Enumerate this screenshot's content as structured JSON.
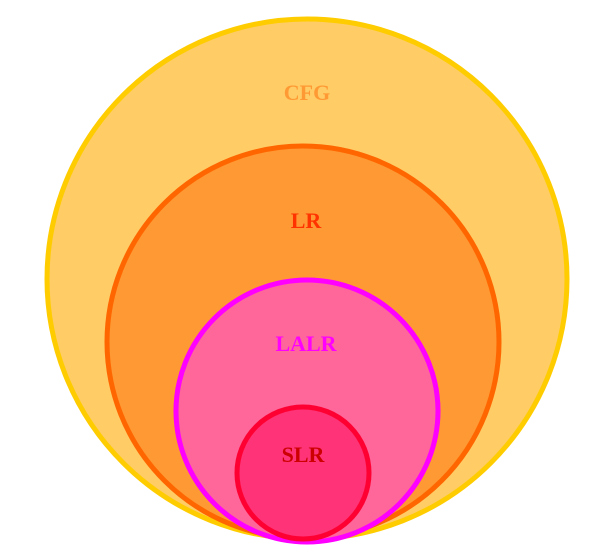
{
  "sets": [
    {
      "id": "cfg",
      "label": "CFG",
      "fill": "#FFCC66",
      "stroke": "#FFCC00",
      "label_color": "#FF9933"
    },
    {
      "id": "lr",
      "label": "LR",
      "fill": "#FF9933",
      "stroke": "#FF6600",
      "label_color": "#FF3300"
    },
    {
      "id": "lalr",
      "label": "LALR",
      "fill": "#FF6699",
      "stroke": "#FF00FF",
      "label_color": "#FF00FF"
    },
    {
      "id": "slr",
      "label": "SLR",
      "fill": "#FF3377",
      "stroke": "#FF0033",
      "label_color": "#CC0000"
    }
  ]
}
